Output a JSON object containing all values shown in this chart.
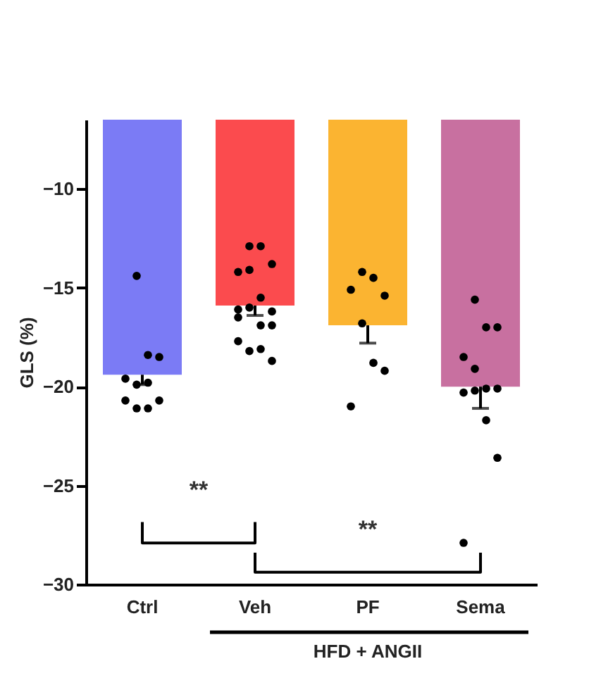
{
  "chart_data": {
    "type": "bar",
    "ylabel": "GLS (%)",
    "categories": [
      "Ctrl",
      "Veh",
      "PF",
      "Sema"
    ],
    "values": [
      -19.4,
      -15.9,
      -16.9,
      -20.0
    ],
    "colors": [
      "#7b7bf5",
      "#fb4b4e",
      "#fbb431",
      "#c870a0"
    ],
    "errors": [
      [
        -19.9,
        -19.4
      ],
      [
        -16.4,
        -15.9
      ],
      [
        -17.8,
        -16.9
      ],
      [
        -21.1,
        -20.0
      ]
    ],
    "series": [
      {
        "type": "scatter",
        "color": "#000000",
        "x": [
          "Ctrl",
          "Ctrl",
          "Ctrl",
          "Ctrl",
          "Ctrl",
          "Ctrl",
          "Ctrl",
          "Ctrl",
          "Ctrl",
          "Ctrl",
          "Veh",
          "Veh",
          "Veh",
          "Veh",
          "Veh",
          "Veh",
          "Veh",
          "Veh",
          "Veh",
          "Veh",
          "Veh",
          "Veh",
          "Veh",
          "Veh",
          "Veh",
          "Veh",
          "PF",
          "PF",
          "PF",
          "PF",
          "PF",
          "PF",
          "PF",
          "PF",
          "Sema",
          "Sema",
          "Sema",
          "Sema",
          "Sema",
          "Sema",
          "Sema",
          "Sema",
          "Sema",
          "Sema",
          "Sema",
          "Sema"
        ],
        "values": [
          -14.4,
          -18.4,
          -18.5,
          -19.6,
          -19.9,
          -19.8,
          -20.7,
          -20.7,
          -21.1,
          -21.1,
          -12.9,
          -12.9,
          -13.8,
          -14.2,
          -14.1,
          -15.5,
          -16.2,
          -16.1,
          -16.0,
          -16.9,
          -16.9,
          -17.7,
          -18.2,
          -18.1,
          -18.7,
          -16.5,
          -14.2,
          -14.5,
          -15.4,
          -15.1,
          -16.8,
          -18.8,
          -19.2,
          -21.0,
          -15.6,
          -17.0,
          -17.0,
          -18.5,
          -19.1,
          -20.1,
          -20.1,
          -20.3,
          -20.2,
          -21.7,
          -23.6,
          -27.9
        ]
      }
    ],
    "ylim": [
      -30,
      -6.5
    ],
    "yticks": [
      -10,
      -15,
      -20,
      -25,
      -30
    ],
    "grid": false,
    "annotations": [
      "**",
      "**",
      "HFD + ANGII"
    ]
  }
}
